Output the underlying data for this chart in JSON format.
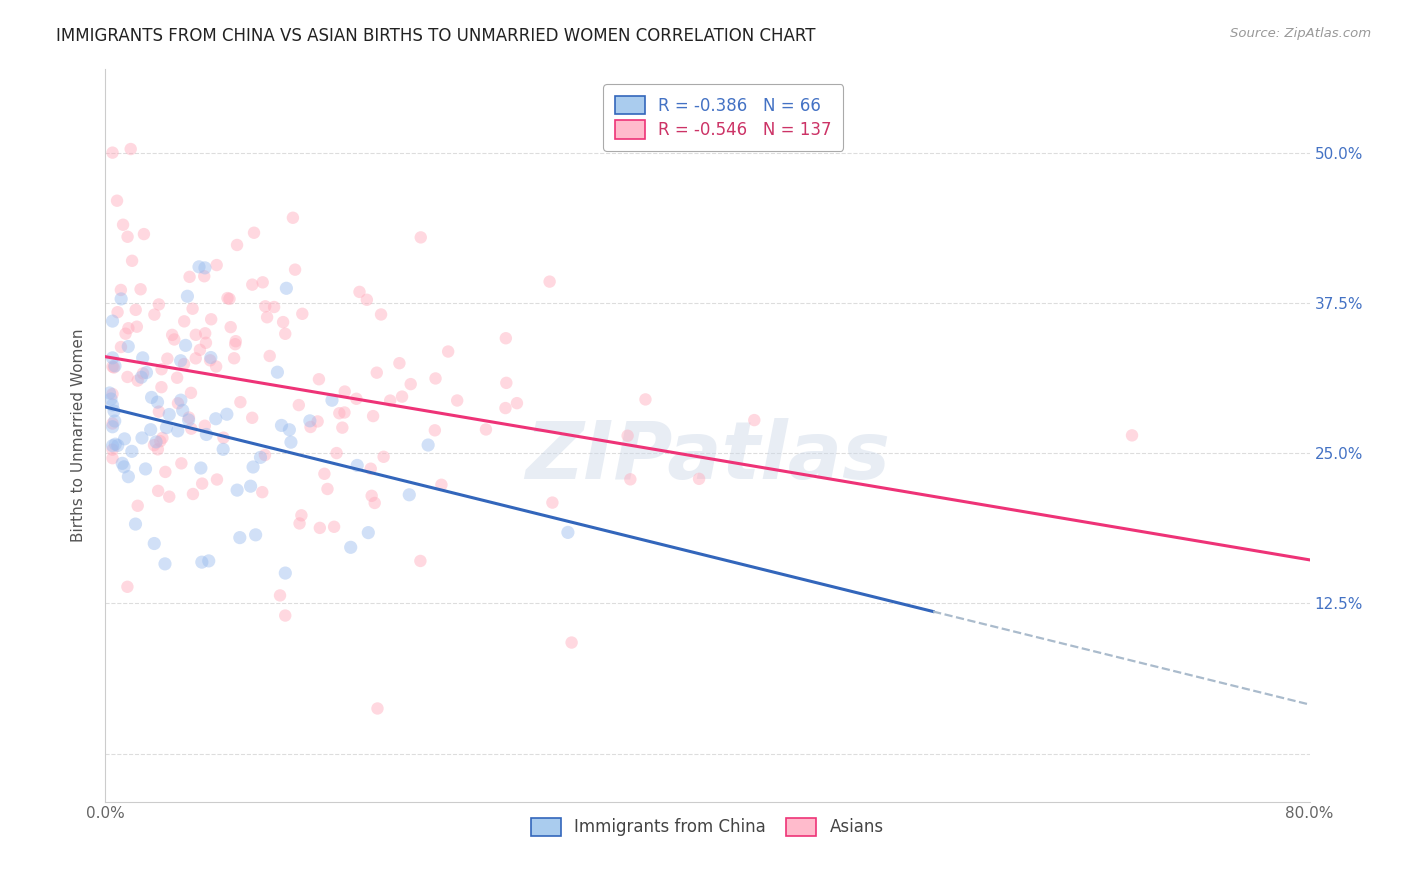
{
  "title": "IMMIGRANTS FROM CHINA VS ASIAN BIRTHS TO UNMARRIED WOMEN CORRELATION CHART",
  "source": "Source: ZipAtlas.com",
  "ylabel": "Births to Unmarried Women",
  "watermark": "ZIPatlas",
  "background_color": "#ffffff",
  "grid_color": "#dddddd",
  "ytick_positions": [
    0.0,
    0.125,
    0.25,
    0.375,
    0.5
  ],
  "ytick_labels": [
    "",
    "12.5%",
    "25.0%",
    "37.5%",
    "50.0%"
  ],
  "xtick_positions": [
    0.0,
    0.16,
    0.32,
    0.48,
    0.64,
    0.8
  ],
  "xtick_labels": [
    "0.0%",
    "",
    "",
    "",
    "",
    "80.0%"
  ],
  "xlim": [
    0.0,
    0.8
  ],
  "ylim": [
    -0.04,
    0.57
  ],
  "series": [
    {
      "name": "Immigrants from China",
      "R": -0.386,
      "N": 66,
      "color": "#99bbee",
      "line_color": "#3366bb",
      "marker_size": 90,
      "alpha": 0.45
    },
    {
      "name": "Asians",
      "R": -0.546,
      "N": 137,
      "color": "#ffaabb",
      "line_color": "#ee3377",
      "marker_size": 80,
      "alpha": 0.45
    }
  ],
  "legend_fontsize": 12,
  "tick_fontsize": 11,
  "axis_label_fontsize": 11,
  "title_fontsize": 12,
  "line_width": 2.2,
  "dashed_color": "#aabbcc",
  "right_tick_color": "#4472c4",
  "legend_R_color_0": "#4472c4",
  "legend_R_color_1": "#cc3366"
}
